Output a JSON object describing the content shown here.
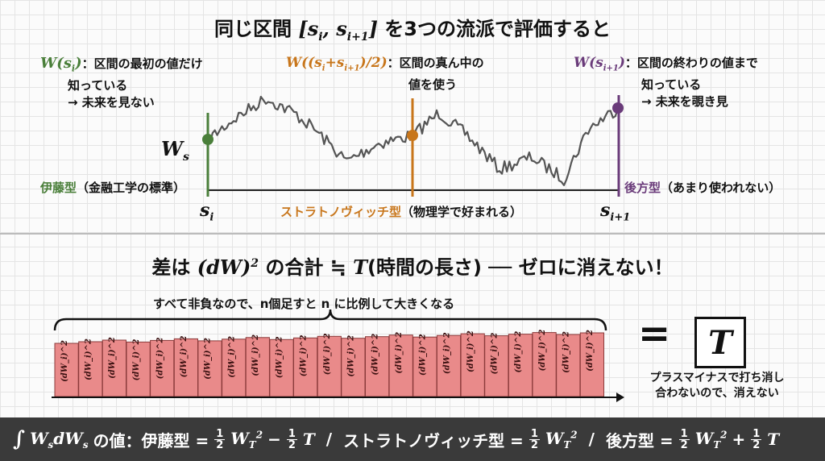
{
  "title": {
    "prefix": "同じ区間 ",
    "interval": "[s_i, s_{i+1}]",
    "suffix": " を3つの流派で評価すると"
  },
  "schools": {
    "ito": {
      "formula": "W(s_i)",
      "desc_line1": "：区間の最初の値だけ",
      "desc_line2": "知っている",
      "desc_line3": "→ 未来を見ない",
      "name": "伊藤型",
      "note": "（金融工学の標準）",
      "color": "#4a7f3a"
    },
    "stratonovich": {
      "formula": "W((s_i+s_{i+1})/2)",
      "desc_line1": "：区間の真ん中の",
      "desc_line2": "値を使う",
      "name": "ストラトノヴィッチ型",
      "note": "（物理学で好まれる）",
      "color": "#c8761b"
    },
    "backward": {
      "formula": "W(s_{i+1})",
      "desc_line1": "：区間の終わりの値まで",
      "desc_line2": "知っている",
      "desc_line3": "→ 未来を覗き見",
      "name": "後方型",
      "note": "（あまり使われない）",
      "color": "#6a3b7a"
    }
  },
  "path_label": "W_s",
  "axis": {
    "s_i": "s_i",
    "s_i1": "s_{i+1}"
  },
  "section2": {
    "title_prefix": "差は ",
    "title_math": "(dW)^2",
    "title_mid": " の合計 ≒ ",
    "title_T": "T",
    "title_suffix": "(時間の長さ) ── ゼロに消えない！",
    "brace_note": "すべて非負なので、n個足すと n に比例して大きくなる",
    "bar_label": "(dW_i)^2",
    "bar_count": 23,
    "equals": "=",
    "boxed": "T",
    "right_note_line1": "プラスマイナスで打ち消し",
    "right_note_line2": "合わないので、消えない"
  },
  "footer": {
    "integral": "∫ W_s dW_s の値：",
    "ito": "伊藤型 = ½W_T² − ½T",
    "sep": "/",
    "strat": "ストラトノヴィッチ型 = ½W_T²",
    "back": "後方型 = ½W_T² + ½T"
  }
}
